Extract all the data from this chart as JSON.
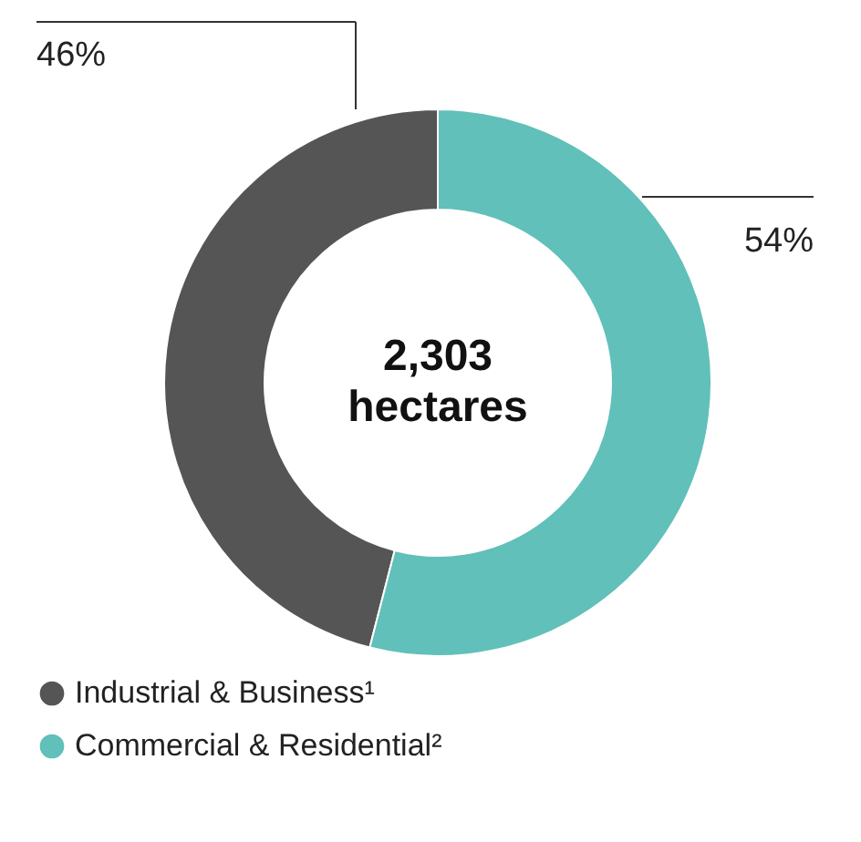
{
  "chart_data": {
    "type": "donut",
    "categories": [
      "Industrial & Business¹",
      "Commercial & Residential²"
    ],
    "values": [
      46,
      54
    ],
    "colors": [
      "#555555",
      "#61c0b9"
    ],
    "value_labels": [
      "46%",
      "54%"
    ],
    "annotations": [
      "2,303",
      "hectares"
    ],
    "legend": "bottom"
  }
}
